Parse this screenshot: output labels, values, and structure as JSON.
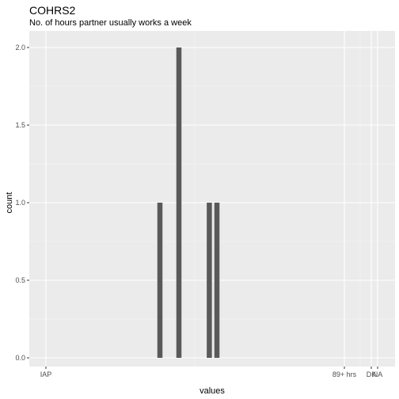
{
  "chart_data": {
    "type": "bar",
    "title": "COHRS2",
    "subtitle": "No. of hours partner usually works a week",
    "xlabel": "values",
    "ylabel": "count",
    "ylim": [
      0,
      2.0
    ],
    "y_ticks": [
      "0.0",
      "0.5",
      "1.0",
      "1.5",
      "2.0"
    ],
    "x_ticks": [
      "IAP",
      "89+ hrs",
      "DK",
      "NA"
    ],
    "bars": [
      {
        "x": 30,
        "count": 1
      },
      {
        "x": 35,
        "count": 2
      },
      {
        "x": 43,
        "count": 1
      },
      {
        "x": 45,
        "count": 1
      }
    ],
    "bar_color": "#595959",
    "panel_color": "#ebebeb",
    "grid": true
  }
}
